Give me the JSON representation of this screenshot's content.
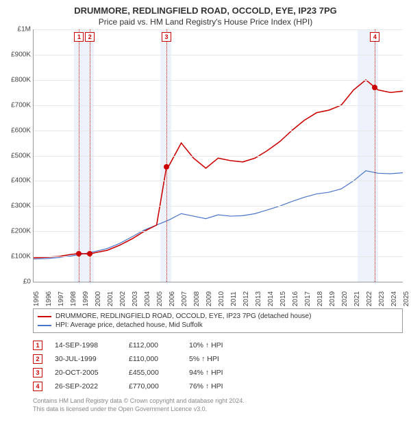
{
  "title": "DRUMMORE, REDLINGFIELD ROAD, OCCOLD, EYE, IP23 7PG",
  "subtitle": "Price paid vs. HM Land Registry's House Price Index (HPI)",
  "chart": {
    "type": "line",
    "ylim": [
      0,
      1000000
    ],
    "ytick_step": 100000,
    "ytick_labels": [
      "£0",
      "£100K",
      "£200K",
      "£300K",
      "£400K",
      "£500K",
      "£600K",
      "£700K",
      "£800K",
      "£900K",
      "£1M"
    ],
    "xlim": [
      1995,
      2025
    ],
    "xticks": [
      1995,
      1996,
      1997,
      1998,
      1999,
      2000,
      2001,
      2002,
      2003,
      2004,
      2005,
      2006,
      2007,
      2008,
      2009,
      2010,
      2011,
      2012,
      2013,
      2014,
      2015,
      2016,
      2017,
      2018,
      2019,
      2020,
      2021,
      2022,
      2023,
      2024,
      2025
    ],
    "background_color": "#ffffff",
    "grid_color": "#e8e8e8",
    "shade_color": "#eef2fa",
    "shade_ranges": [
      [
        1998.3,
        1999.9
      ],
      [
        2005.3,
        2006.2
      ],
      [
        2021.3,
        2023.0
      ]
    ],
    "series": {
      "property": {
        "color": "#cc0000",
        "width": 1.6,
        "points": [
          [
            1995,
            95000
          ],
          [
            1996,
            97000
          ],
          [
            1997,
            100000
          ],
          [
            1998,
            108000
          ],
          [
            1998.7,
            112000
          ],
          [
            1999.58,
            110000
          ],
          [
            2000,
            115000
          ],
          [
            2001,
            125000
          ],
          [
            2002,
            145000
          ],
          [
            2003,
            170000
          ],
          [
            2004,
            200000
          ],
          [
            2005,
            225000
          ],
          [
            2005.8,
            455000
          ],
          [
            2006,
            460000
          ],
          [
            2007,
            550000
          ],
          [
            2008,
            490000
          ],
          [
            2009,
            450000
          ],
          [
            2010,
            490000
          ],
          [
            2011,
            480000
          ],
          [
            2012,
            475000
          ],
          [
            2013,
            490000
          ],
          [
            2014,
            520000
          ],
          [
            2015,
            555000
          ],
          [
            2016,
            600000
          ],
          [
            2017,
            640000
          ],
          [
            2018,
            670000
          ],
          [
            2019,
            680000
          ],
          [
            2020,
            700000
          ],
          [
            2021,
            760000
          ],
          [
            2022,
            800000
          ],
          [
            2022.74,
            770000
          ],
          [
            2023,
            760000
          ],
          [
            2024,
            750000
          ],
          [
            2025,
            755000
          ]
        ]
      },
      "hpi": {
        "color": "#4a74c9",
        "width": 1.2,
        "points": [
          [
            1995,
            90000
          ],
          [
            1996,
            92000
          ],
          [
            1997,
            96000
          ],
          [
            1998,
            102000
          ],
          [
            1999,
            110000
          ],
          [
            2000,
            120000
          ],
          [
            2001,
            132000
          ],
          [
            2002,
            152000
          ],
          [
            2003,
            178000
          ],
          [
            2004,
            205000
          ],
          [
            2005,
            225000
          ],
          [
            2006,
            245000
          ],
          [
            2007,
            270000
          ],
          [
            2008,
            260000
          ],
          [
            2009,
            250000
          ],
          [
            2010,
            265000
          ],
          [
            2011,
            260000
          ],
          [
            2012,
            262000
          ],
          [
            2013,
            270000
          ],
          [
            2014,
            285000
          ],
          [
            2015,
            300000
          ],
          [
            2016,
            318000
          ],
          [
            2017,
            335000
          ],
          [
            2018,
            348000
          ],
          [
            2019,
            355000
          ],
          [
            2020,
            368000
          ],
          [
            2021,
            400000
          ],
          [
            2022,
            440000
          ],
          [
            2023,
            430000
          ],
          [
            2024,
            428000
          ],
          [
            2025,
            432000
          ]
        ]
      }
    },
    "sale_markers": [
      {
        "num": "1",
        "x": 1998.7,
        "y": 112000
      },
      {
        "num": "2",
        "x": 1999.58,
        "y": 110000
      },
      {
        "num": "3",
        "x": 2005.8,
        "y": 455000
      },
      {
        "num": "4",
        "x": 2022.74,
        "y": 770000
      }
    ]
  },
  "legend": {
    "items": [
      {
        "color": "#cc0000",
        "label": "DRUMMORE, REDLINGFIELD ROAD, OCCOLD, EYE, IP23 7PG (detached house)"
      },
      {
        "color": "#4a74c9",
        "label": "HPI: Average price, detached house, Mid Suffolk"
      }
    ]
  },
  "events": [
    {
      "num": "1",
      "date": "14-SEP-1998",
      "price": "£112,000",
      "pct": "10% ↑ HPI"
    },
    {
      "num": "2",
      "date": "30-JUL-1999",
      "price": "£110,000",
      "pct": "5% ↑ HPI"
    },
    {
      "num": "3",
      "date": "20-OCT-2005",
      "price": "£455,000",
      "pct": "94% ↑ HPI"
    },
    {
      "num": "4",
      "date": "26-SEP-2022",
      "price": "£770,000",
      "pct": "76% ↑ HPI"
    }
  ],
  "footer": {
    "line1": "Contains HM Land Registry data © Crown copyright and database right 2024.",
    "line2": "This data is licensed under the Open Government Licence v3.0."
  }
}
